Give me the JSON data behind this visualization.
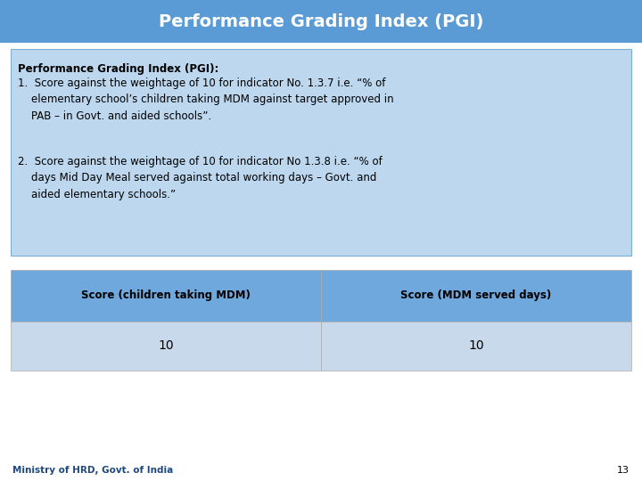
{
  "title": "Performance Grading Index (PGI)",
  "title_bg_color": "#5B9BD5",
  "title_text_color": "#FFFFFF",
  "slide_bg_color": "#FFFFFF",
  "text_box_bg_color": "#BDD7EE",
  "text_box_border_color": "#7BAFD4",
  "bold_header": "Performance Grading Index (PGI):",
  "point1_text": "1.  Score against the weightage of 10 for indicator No. 1.3.7 i.e. “% of\n    elementary school’s children taking MDM against target approved in\n    PAB – in Govt. and aided schools”.",
  "point2_text": "2.  Score against the weightage of 10 for indicator No 1.3.8 i.e. “% of\n    days Mid Day Meal served against total working days – Govt. and\n    aided elementary schools.”",
  "table_header_bg": "#6FA8DC",
  "table_row_bg": "#C9D9EC",
  "table_col1_header": "Score (children taking MDM)",
  "table_col2_header": "Score (MDM served days)",
  "table_col1_value": "10",
  "table_col2_value": "10",
  "footer_text": "Ministry of HRD, Govt. of India",
  "footer_color": "#1F497D",
  "page_number": "13"
}
